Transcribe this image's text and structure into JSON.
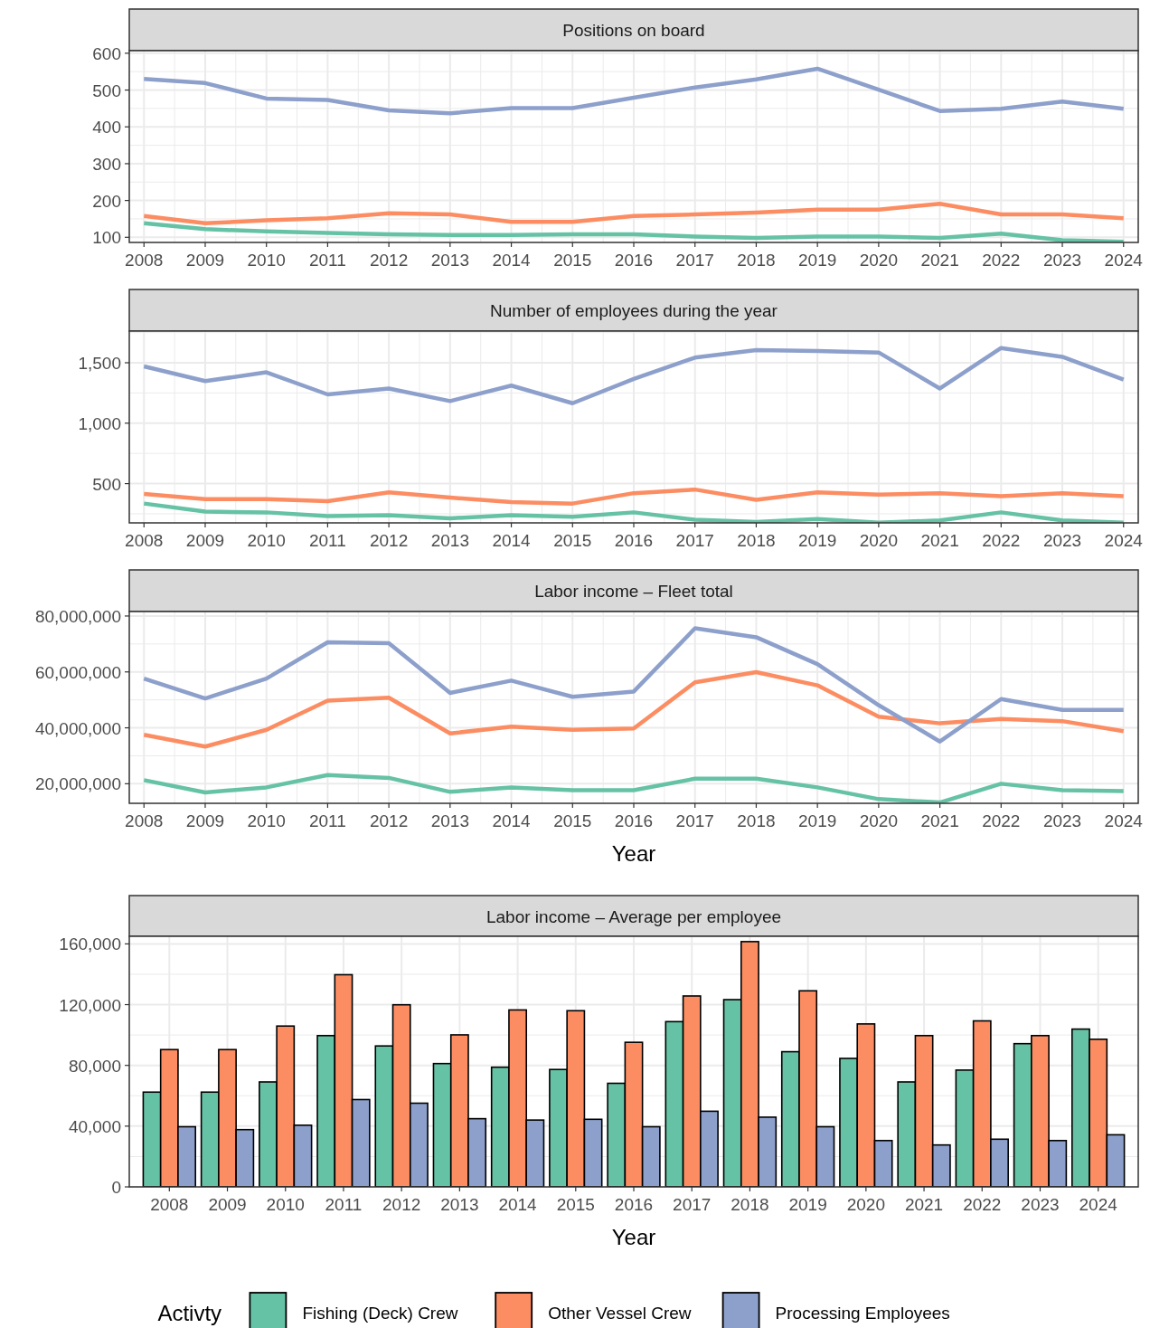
{
  "chart_data": [
    {
      "type": "line",
      "title": "Positions on board",
      "x": [
        2008,
        2009,
        2010,
        2011,
        2012,
        2013,
        2014,
        2015,
        2016,
        2017,
        2018,
        2019,
        2020,
        2021,
        2022,
        2023,
        2024
      ],
      "xlim": [
        2007.76,
        2024.24
      ],
      "xticks": [
        2008,
        2009,
        2010,
        2011,
        2012,
        2013,
        2014,
        2015,
        2016,
        2017,
        2018,
        2019,
        2020,
        2021,
        2022,
        2023,
        2024
      ],
      "ylim": [
        86,
        607
      ],
      "yticks": [
        100,
        200,
        300,
        400,
        500,
        600
      ],
      "grid": true,
      "legend": false,
      "series": [
        {
          "color": "#66c2a5",
          "values": [
            138,
            122,
            116,
            112,
            108,
            106,
            106,
            108,
            108,
            102,
            98,
            102,
            102,
            98,
            110,
            92,
            88
          ]
        },
        {
          "color": "#fc8d62",
          "values": [
            158,
            138,
            146,
            152,
            165,
            162,
            142,
            142,
            158,
            162,
            167,
            175,
            175,
            191,
            162,
            162,
            152
          ]
        },
        {
          "color": "#8da0cb",
          "values": [
            530,
            519,
            477,
            473,
            445,
            437,
            451,
            451,
            479,
            507,
            529,
            558,
            501,
            443,
            449,
            469,
            449
          ]
        }
      ]
    },
    {
      "type": "line",
      "title": "Number of employees during the year",
      "x": [
        2008,
        2009,
        2010,
        2011,
        2012,
        2013,
        2014,
        2015,
        2016,
        2017,
        2018,
        2019,
        2020,
        2021,
        2022,
        2023,
        2024
      ],
      "xlim": [
        2007.76,
        2024.24
      ],
      "xticks": [
        2008,
        2009,
        2010,
        2011,
        2012,
        2013,
        2014,
        2015,
        2016,
        2017,
        2018,
        2019,
        2020,
        2021,
        2022,
        2023,
        2024
      ],
      "ylim": [
        175,
        1762
      ],
      "yticks": [
        500,
        {
          "value": 1000,
          "label": "1,000"
        },
        {
          "value": 1500,
          "label": "1,500"
        }
      ],
      "grid": true,
      "legend": false,
      "series": [
        {
          "color": "#66c2a5",
          "values": [
            335,
            268,
            262,
            232,
            238,
            213,
            238,
            226,
            262,
            201,
            183,
            207,
            177,
            195,
            262,
            195,
            177
          ]
        },
        {
          "color": "#fc8d62",
          "values": [
            415,
            372,
            372,
            354,
            427,
            384,
            348,
            335,
            421,
            451,
            366,
            427,
            409,
            421,
            396,
            421,
            396
          ]
        },
        {
          "color": "#8da0cb",
          "values": [
            1470,
            1348,
            1421,
            1238,
            1287,
            1183,
            1311,
            1165,
            1366,
            1543,
            1604,
            1598,
            1585,
            1287,
            1622,
            1549,
            1360
          ]
        }
      ]
    },
    {
      "type": "line",
      "title": "Labor income – Fleet total",
      "xlabel": "Year",
      "x": [
        2008,
        2009,
        2010,
        2011,
        2012,
        2013,
        2014,
        2015,
        2016,
        2017,
        2018,
        2019,
        2020,
        2021,
        2022,
        2023,
        2024
      ],
      "xlim": [
        2007.76,
        2024.24
      ],
      "xticks": [
        2008,
        2009,
        2010,
        2011,
        2012,
        2013,
        2014,
        2015,
        2016,
        2017,
        2018,
        2019,
        2020,
        2021,
        2022,
        2023,
        2024
      ],
      "ylim": [
        13000000,
        81600000
      ],
      "yticks": [
        {
          "value": 20000000,
          "label": "20,000,000"
        },
        {
          "value": 40000000,
          "label": "40,000,000"
        },
        {
          "value": 60000000,
          "label": "60,000,000"
        },
        {
          "value": 80000000,
          "label": "80,000,000"
        }
      ],
      "grid": true,
      "legend": false,
      "series": [
        {
          "color": "#66c2a5",
          "values": [
            21300000,
            16900000,
            18700000,
            23100000,
            22100000,
            17100000,
            18700000,
            17700000,
            17700000,
            21800000,
            21800000,
            18700000,
            14500000,
            13300000,
            20000000,
            17700000,
            17400000
          ]
        },
        {
          "color": "#fc8d62",
          "values": [
            37500000,
            33300000,
            39300000,
            49700000,
            50800000,
            38000000,
            40400000,
            39300000,
            39800000,
            56300000,
            59900000,
            55200000,
            44000000,
            41600000,
            43200000,
            42400000,
            38800000
          ]
        },
        {
          "color": "#8da0cb",
          "values": [
            57600000,
            50500000,
            57600000,
            70600000,
            70300000,
            52500000,
            56900000,
            51100000,
            53000000,
            75600000,
            72400000,
            62800000,
            48100000,
            35100000,
            50300000,
            46400000,
            46400000
          ]
        }
      ]
    },
    {
      "type": "bar",
      "title": "Labor income – Average per employee",
      "xlabel": "Year",
      "legend_title": "Activty",
      "legend": "bottom",
      "categories": [
        "2008",
        "2009",
        "2010",
        "2011",
        "2012",
        "2013",
        "2014",
        "2015",
        "2016",
        "2017",
        "2018",
        "2019",
        "2020",
        "2021",
        "2022",
        "2023",
        "2024"
      ],
      "ylim": [
        0,
        165000
      ],
      "yticks": [
        0,
        {
          "value": 40000,
          "label": "40,000"
        },
        {
          "value": 80000,
          "label": "80,000"
        },
        {
          "value": 120000,
          "label": "120,000"
        },
        {
          "value": 160000,
          "label": "160,000"
        }
      ],
      "grid": true,
      "series": [
        {
          "name": "Fishing (Deck) Crew",
          "color": "#66c2a5",
          "values": [
            62400,
            62400,
            69100,
            99600,
            92800,
            81200,
            78800,
            77300,
            68200,
            108800,
            123300,
            89000,
            84600,
            69100,
            76900,
            94300,
            103900
          ]
        },
        {
          "name": "Other Vessel Crew",
          "color": "#fc8d62",
          "values": [
            90400,
            90400,
            105900,
            139700,
            119900,
            100100,
            116500,
            116000,
            95200,
            125700,
            161500,
            129100,
            107300,
            99600,
            109300,
            99600,
            97200
          ]
        },
        {
          "name": "Processing Employees",
          "color": "#8da0cb",
          "values": [
            39600,
            37700,
            40600,
            57500,
            55100,
            44900,
            44000,
            44500,
            39600,
            49800,
            45900,
            39600,
            30500,
            27600,
            31400,
            30500,
            34300
          ]
        }
      ]
    }
  ]
}
